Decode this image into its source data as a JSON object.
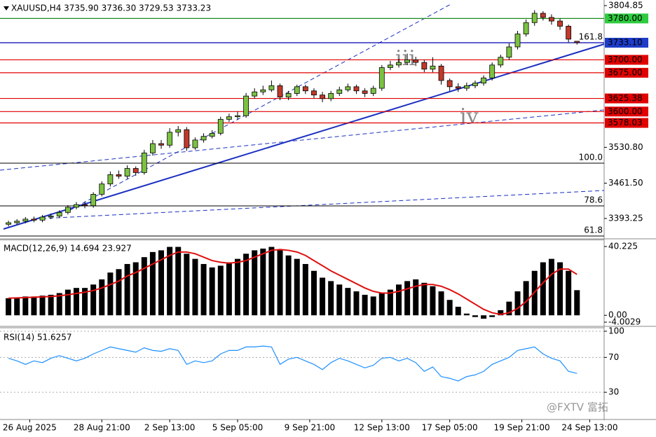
{
  "chart_data": [
    {
      "type": "candlestick",
      "title": "XAUUSD,H4  3735.90 3736.30 3729.53 3733.23",
      "open": [
        3382,
        3385,
        3388,
        3392,
        3390,
        3396,
        3398,
        3405,
        3415,
        3420,
        3418,
        3440,
        3460,
        3478,
        3475,
        3490,
        3482,
        3520,
        3538,
        3535,
        3560,
        3565,
        3530,
        3545,
        3552,
        3558,
        3585,
        3590,
        3592,
        3630,
        3638,
        3642,
        3650,
        3628,
        3635,
        3648,
        3640,
        3632,
        3625,
        3635,
        3642,
        3648,
        3640,
        3635,
        3645,
        3685,
        3690,
        3695,
        3700,
        3695,
        3682,
        3688,
        3660,
        3648,
        3645,
        3650,
        3655,
        3665,
        3690,
        3705,
        3725,
        3750,
        3772,
        3790,
        3782,
        3775,
        3765,
        3735.9
      ],
      "high": [
        3389,
        3392,
        3396,
        3397,
        3400,
        3403,
        3409,
        3419,
        3425,
        3426,
        3444,
        3465,
        3484,
        3486,
        3496,
        3494,
        3526,
        3545,
        3545,
        3568,
        3572,
        3570,
        3550,
        3558,
        3564,
        3590,
        3596,
        3600,
        3636,
        3645,
        3650,
        3660,
        3654,
        3640,
        3652,
        3652,
        3645,
        3638,
        3640,
        3648,
        3654,
        3652,
        3645,
        3650,
        3690,
        3698,
        3702,
        3712,
        3706,
        3700,
        3705,
        3692,
        3664,
        3655,
        3656,
        3660,
        3670,
        3695,
        3710,
        3732,
        3756,
        3778,
        3796,
        3794,
        3788,
        3780,
        3768,
        3736.3
      ],
      "low": [
        3378,
        3381,
        3384,
        3386,
        3386,
        3392,
        3394,
        3401,
        3411,
        3413,
        3414,
        3436,
        3455,
        3470,
        3470,
        3476,
        3478,
        3515,
        3528,
        3530,
        3552,
        3524,
        3526,
        3540,
        3548,
        3554,
        3580,
        3584,
        3588,
        3625,
        3632,
        3638,
        3622,
        3622,
        3630,
        3634,
        3626,
        3618,
        3620,
        3630,
        3638,
        3634,
        3628,
        3630,
        3640,
        3680,
        3685,
        3690,
        3688,
        3676,
        3676,
        3652,
        3640,
        3638,
        3640,
        3645,
        3650,
        3660,
        3685,
        3700,
        3720,
        3745,
        3766,
        3776,
        3768,
        3758,
        3734,
        3729.53
      ],
      "close": [
        3385,
        3388,
        3392,
        3390,
        3396,
        3398,
        3405,
        3415,
        3420,
        3418,
        3440,
        3460,
        3478,
        3475,
        3490,
        3482,
        3520,
        3538,
        3535,
        3560,
        3565,
        3530,
        3545,
        3552,
        3558,
        3585,
        3590,
        3592,
        3630,
        3638,
        3642,
        3650,
        3628,
        3635,
        3648,
        3640,
        3632,
        3625,
        3635,
        3642,
        3648,
        3640,
        3635,
        3645,
        3685,
        3690,
        3695,
        3700,
        3695,
        3682,
        3688,
        3660,
        3648,
        3645,
        3650,
        3655,
        3665,
        3690,
        3705,
        3725,
        3750,
        3772,
        3790,
        3782,
        3775,
        3765,
        3740,
        3733.23
      ],
      "up_color": "#7cc242",
      "down_color": "#c0392b",
      "xlim": [
        -1,
        70.2
      ],
      "xticks": [
        {
          "value": 2.5,
          "label": "26 Aug 2025"
        },
        {
          "value": 11,
          "label": "28 Aug 21:00"
        },
        {
          "value": 19,
          "label": "2 Sep 13:00"
        },
        {
          "value": 27,
          "label": "5 Sep 05:00"
        },
        {
          "value": 35.5,
          "label": "9 Sep 21:00"
        },
        {
          "value": 44,
          "label": "12 Sep 13:00"
        },
        {
          "value": 52,
          "label": "17 Sep 05:00"
        },
        {
          "value": 60.5,
          "label": "19 Sep 21:00"
        },
        {
          "value": 68.5,
          "label": "24 Sep 13:00"
        }
      ],
      "ylim": [
        3355.3,
        3815.7
      ],
      "yticks": [
        3804.85,
        {
          "value": 3530.8,
          "label": "3530.80"
        },
        {
          "value": 3461.5,
          "label": "3461.50"
        },
        3393.25
      ],
      "levels": [
        {
          "value": 3780,
          "label": "3780.00",
          "color": "#1a8a1a",
          "fill": "#2ecc40",
          "text_color": "#000"
        },
        {
          "value": 3733.1,
          "label": "3733.10",
          "color": "#0000b0",
          "fill": "#1e3cc8",
          "text_color": "#fff"
        },
        {
          "value": 3700,
          "label": "3700.00",
          "color": "#e00000",
          "fill": "#e00000",
          "text_color": "#fff"
        },
        {
          "value": 3675,
          "label": "3675.00",
          "color": "#e00000",
          "fill": "#e00000",
          "text_color": "#fff"
        },
        {
          "value": 3625.38,
          "label": "3625.38",
          "color": "#e00000",
          "fill": "#e00000",
          "text_color": "#fff"
        },
        {
          "value": 3600,
          "label": "3600.00",
          "color": "#e00000",
          "fill": "#e00000",
          "text_color": "#fff"
        },
        {
          "value": 3578.03,
          "label": "3578.03",
          "color": "#e00000",
          "fill": "#e00000",
          "text_color": "#fff"
        }
      ],
      "fib_levels": [
        {
          "name": "161.8",
          "price": 3733.1,
          "color": "#1a1aa0"
        },
        {
          "name": "100.0",
          "price": 3500.2,
          "color": "#1a1aa0"
        },
        {
          "name": "78.6",
          "price": 3417.6,
          "color": "#1a1aa0"
        },
        {
          "name": "61.8",
          "price": 3359.4,
          "color": "#1a1aa0"
        }
      ],
      "annotations": [
        "iii",
        "iv"
      ],
      "watermark": "@FXTV 富拓"
    },
    {
      "type": "macd",
      "title": "MACD(12,26,9) 14.694 23.927",
      "values": [
        10,
        10.5,
        11,
        11,
        11.5,
        12,
        13,
        15,
        16,
        16,
        18,
        21,
        25,
        27,
        30,
        31,
        34,
        37,
        38,
        40,
        40,
        36,
        33,
        30,
        28,
        29,
        31,
        33,
        36,
        38,
        39,
        40,
        38,
        35,
        33,
        30,
        26,
        22,
        20,
        18,
        16,
        14,
        12,
        11,
        13,
        15,
        18,
        20,
        21,
        19,
        17,
        14,
        9,
        5,
        1,
        -1,
        -2,
        -1,
        3,
        8,
        14,
        20,
        26,
        31,
        33,
        31,
        26,
        14.694
      ],
      "signal": [
        10,
        10.2,
        10.4,
        10.6,
        10.8,
        11,
        11.4,
        12,
        12.8,
        13.5,
        14.5,
        16,
        18,
        20,
        23,
        25,
        27.5,
        30,
        32.5,
        35,
        37,
        37,
        36,
        34,
        32,
        31,
        30.5,
        31,
        32,
        34,
        36,
        38,
        38.5,
        38,
        37,
        35,
        32,
        29,
        26,
        23.5,
        21,
        18.5,
        16,
        14,
        13,
        13,
        14,
        15.5,
        17,
        18,
        18,
        17,
        15,
        12.5,
        9.5,
        6.5,
        3.5,
        1.5,
        0.5,
        1.5,
        4,
        8,
        13.5,
        19,
        24,
        27,
        27,
        23.927
      ],
      "color": "#000",
      "signal_color": "#e01010",
      "ylim": [
        -4.82,
        43.91
      ],
      "yticks": [
        40.225,
        {
          "value": 0,
          "label": "0.00"
        },
        -4.0029
      ]
    },
    {
      "type": "line",
      "title": "RSI(14) 51.6257",
      "values": [
        69,
        66,
        62,
        66,
        64,
        69,
        72,
        69,
        66,
        69,
        74,
        78,
        82,
        80,
        78,
        76,
        81,
        78,
        77,
        80,
        78,
        62,
        66,
        64,
        66,
        74,
        78,
        78,
        82,
        82,
        83,
        82,
        62,
        68,
        70,
        66,
        62,
        56,
        64,
        69,
        66,
        62,
        58,
        61,
        69,
        70,
        66,
        69,
        64,
        54,
        59,
        48,
        46,
        43,
        48,
        50,
        54,
        62,
        66,
        70,
        78,
        80,
        82,
        74,
        69,
        66,
        54,
        51.6257
      ],
      "color": "#1e90ff",
      "ylim": [
        -0.4,
        102.4
      ],
      "yticks": [
        100,
        70,
        30
      ],
      "grid": true
    }
  ]
}
